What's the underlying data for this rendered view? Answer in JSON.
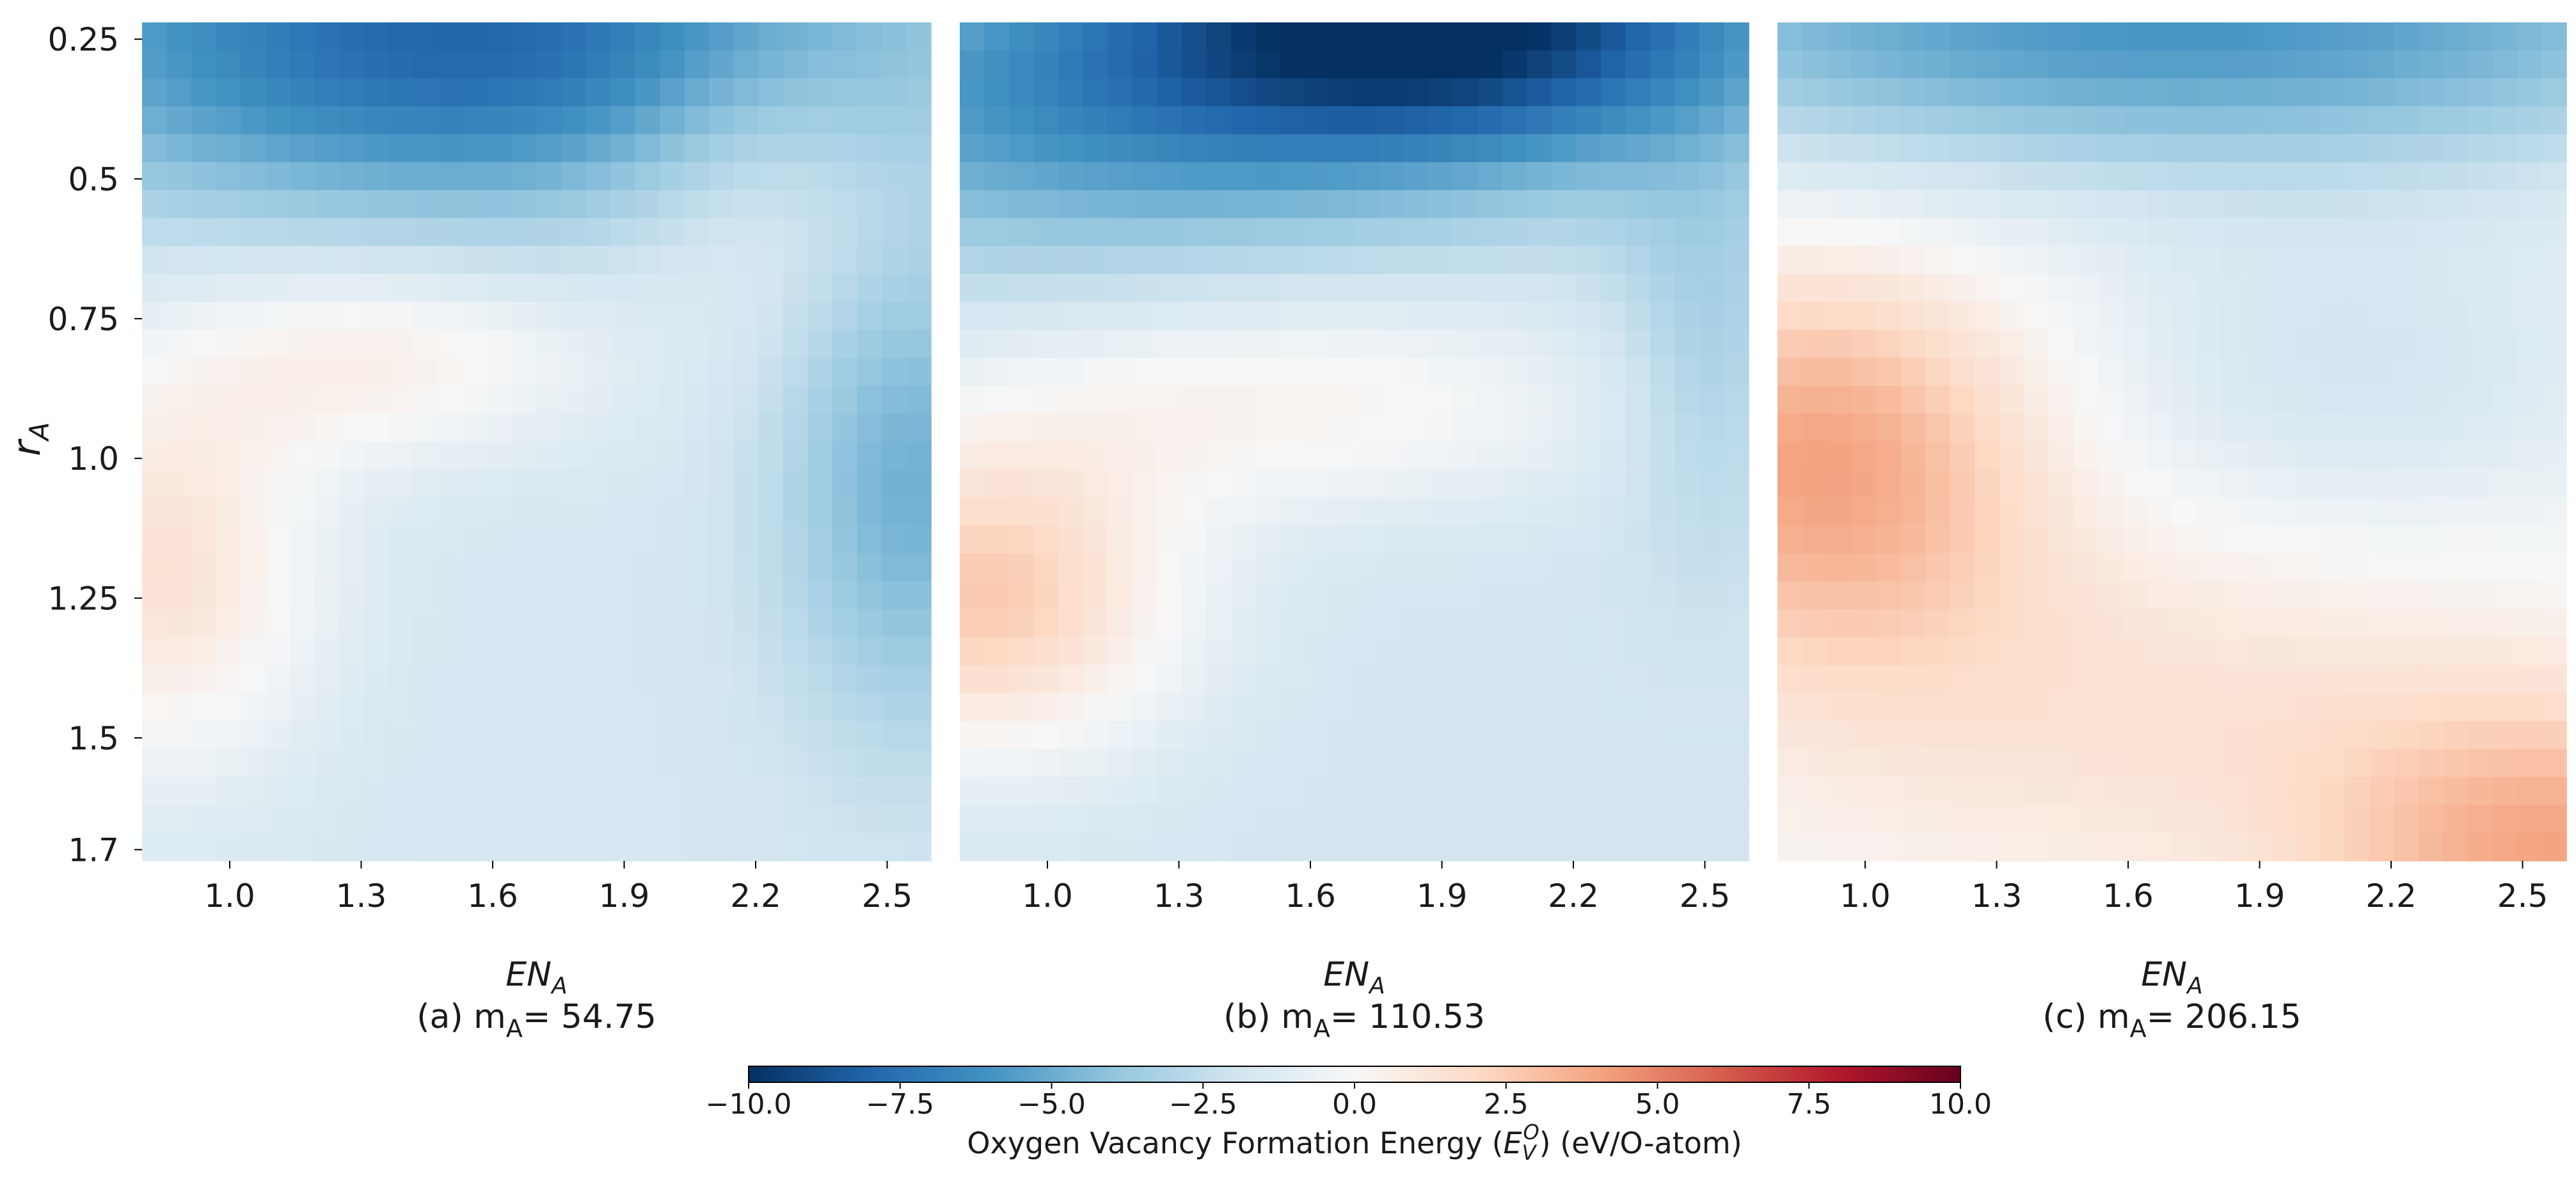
{
  "chart_data": {
    "type": "heatmap",
    "colormap": "RdBu_r",
    "shared_y": {
      "label": "r_A",
      "label_main": "r",
      "label_sub": "A",
      "range": [
        0.22,
        1.72
      ],
      "ticks": [
        {
          "value": 0.25,
          "label": "0.25"
        },
        {
          "value": 0.5,
          "label": "0.5"
        },
        {
          "value": 0.75,
          "label": "0.75"
        },
        {
          "value": 1.0,
          "label": "1.0"
        },
        {
          "value": 1.25,
          "label": "1.25"
        },
        {
          "value": 1.5,
          "label": "1.5"
        },
        {
          "value": 1.7,
          "label": "1.7"
        }
      ]
    },
    "x_range": [
      0.8,
      2.6
    ],
    "x_ticks": [
      {
        "value": 1.0,
        "label": "1.0"
      },
      {
        "value": 1.3,
        "label": "1.3"
      },
      {
        "value": 1.6,
        "label": "1.6"
      },
      {
        "value": 1.9,
        "label": "1.9"
      },
      {
        "value": 2.2,
        "label": "2.2"
      },
      {
        "value": 2.5,
        "label": "2.5"
      }
    ],
    "grid": {
      "nx": 32,
      "ny": 30
    },
    "panels": [
      {
        "id": "a",
        "xlabel": "EN_A",
        "xlabel_main": "EN",
        "xlabel_sub": "A",
        "caption_prefix": "(a)",
        "caption_m": "m",
        "caption_sub": "A",
        "caption_value": "= 54.75",
        "base": -1.8,
        "features": [
          {
            "x": 1.55,
            "y": 0.25,
            "amp": -6.2,
            "sx": 0.75,
            "sy": 0.22
          },
          {
            "x": 0.85,
            "y": 1.2,
            "amp": 3.2,
            "sx": 0.25,
            "sy": 0.25
          },
          {
            "x": 1.35,
            "y": 0.82,
            "amp": 2.4,
            "sx": 0.35,
            "sy": 0.13
          },
          {
            "x": 2.55,
            "y": 1.05,
            "amp": -3.0,
            "sx": 0.2,
            "sy": 0.3
          },
          {
            "x": 2.2,
            "y": 0.45,
            "amp": 1.6,
            "sx": 0.25,
            "sy": 0.2
          }
        ]
      },
      {
        "id": "b",
        "xlabel": "EN_A",
        "xlabel_main": "EN",
        "xlabel_sub": "A",
        "caption_prefix": "(b)",
        "caption_m": "m",
        "caption_sub": "A",
        "caption_value": "= 110.53",
        "base": -1.9,
        "features": [
          {
            "x": 1.9,
            "y": 0.22,
            "amp": -8.2,
            "sx": 0.55,
            "sy": 0.18
          },
          {
            "x": 1.0,
            "y": 0.38,
            "amp": -3.2,
            "sx": 0.6,
            "sy": 0.2
          },
          {
            "x": 0.85,
            "y": 1.25,
            "amp": 4.5,
            "sx": 0.32,
            "sy": 0.2
          },
          {
            "x": 1.55,
            "y": 0.9,
            "amp": 2.2,
            "sx": 0.55,
            "sy": 0.14
          },
          {
            "x": 2.5,
            "y": 0.8,
            "amp": -1.6,
            "sx": 0.15,
            "sy": 0.25
          }
        ]
      },
      {
        "id": "c",
        "xlabel": "EN_A",
        "xlabel_main": "EN",
        "xlabel_sub": "A",
        "caption_prefix": "(c)",
        "caption_m": "m",
        "caption_sub": "A",
        "caption_value": "= 206.15",
        "base": -0.3,
        "features": [
          {
            "x": 1.7,
            "y": 0.22,
            "amp": -5.6,
            "sx": 1.1,
            "sy": 0.2
          },
          {
            "x": 0.9,
            "y": 1.0,
            "amp": 4.2,
            "sx": 0.35,
            "sy": 0.25
          },
          {
            "x": 2.6,
            "y": 1.72,
            "amp": 4.0,
            "sx": 0.4,
            "sy": 0.2
          },
          {
            "x": 1.6,
            "y": 1.45,
            "amp": 1.6,
            "sx": 0.7,
            "sy": 0.25
          },
          {
            "x": 2.1,
            "y": 0.85,
            "amp": -1.6,
            "sx": 0.45,
            "sy": 0.2
          }
        ]
      }
    ],
    "colorbar": {
      "min": -10.0,
      "max": 10.0,
      "ticks": [
        {
          "value": -10.0,
          "label": "−10.0"
        },
        {
          "value": -7.5,
          "label": "−7.5"
        },
        {
          "value": -5.0,
          "label": "−5.0"
        },
        {
          "value": -2.5,
          "label": "−2.5"
        },
        {
          "value": 0.0,
          "label": "0.0"
        },
        {
          "value": 2.5,
          "label": "2.5"
        },
        {
          "value": 5.0,
          "label": "5.0"
        },
        {
          "value": 7.5,
          "label": "7.5"
        },
        {
          "value": 10.0,
          "label": "10.0"
        }
      ],
      "label_prefix": "Oxygen Vacancy Formation Energy (",
      "label_symbol": "E",
      "label_sub": "V",
      "label_sup": "O",
      "label_suffix": ")  (eV/O-atom)"
    }
  }
}
